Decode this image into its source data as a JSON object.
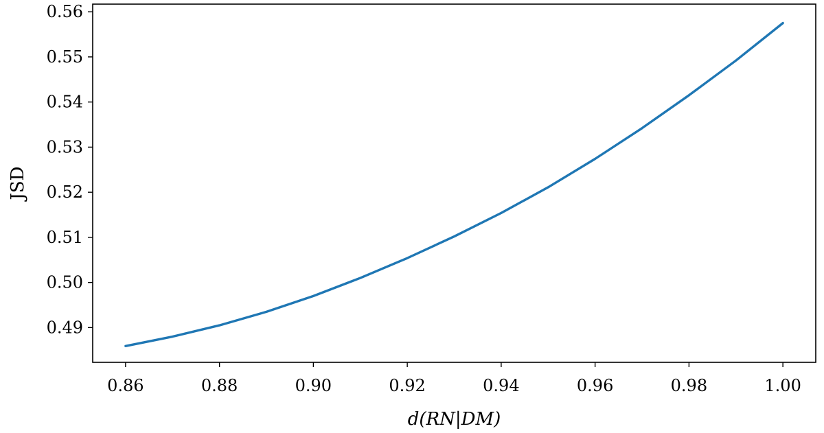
{
  "chart_data": {
    "type": "line",
    "title": "",
    "xlabel": "d(RN|DM)",
    "ylabel": "JSD",
    "xlim": [
      0.853,
      1.007
    ],
    "ylim": [
      0.4823,
      0.5617
    ],
    "grid": false,
    "legend": "none",
    "x_ticks": [
      0.86,
      0.88,
      0.9,
      0.92,
      0.94,
      0.96,
      0.98,
      1.0
    ],
    "x_tick_labels": [
      "0.86",
      "0.88",
      "0.90",
      "0.92",
      "0.94",
      "0.96",
      "0.98",
      "1.00"
    ],
    "y_ticks": [
      0.49,
      0.5,
      0.51,
      0.52,
      0.53,
      0.54,
      0.55,
      0.56
    ],
    "y_tick_labels": [
      "0.49",
      "0.50",
      "0.51",
      "0.52",
      "0.53",
      "0.54",
      "0.55",
      "0.56"
    ],
    "series": [
      {
        "color": "#1f77b4",
        "x": [
          0.86,
          0.87,
          0.88,
          0.89,
          0.9,
          0.91,
          0.92,
          0.93,
          0.94,
          0.95,
          0.96,
          0.97,
          0.98,
          0.99,
          1.0
        ],
        "y": [
          0.4859,
          0.488,
          0.4905,
          0.4935,
          0.497,
          0.501,
          0.5054,
          0.5102,
          0.5154,
          0.5211,
          0.5274,
          0.5342,
          0.5415,
          0.5492,
          0.5575
        ]
      }
    ]
  }
}
